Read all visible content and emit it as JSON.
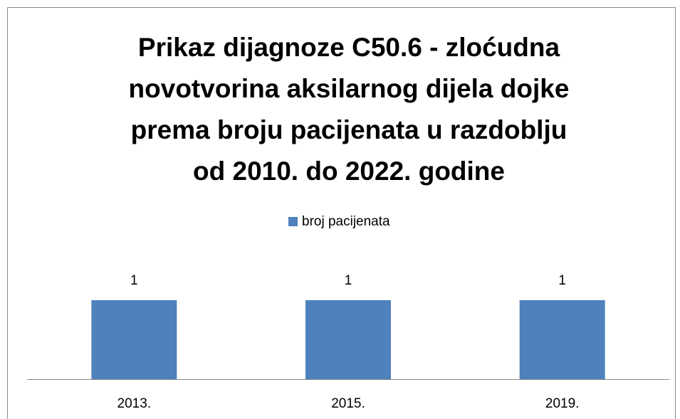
{
  "chart_data": {
    "type": "bar",
    "title": "Prikaz dijagnoze C50.6 - zloćudna\nnovotvorina aksilarnog dijela dojke\nprema broju pacijenata u razdoblju\nod 2010. do 2022. godine",
    "categories": [
      "2013.",
      "2015.",
      "2019."
    ],
    "series": [
      {
        "name": "broj pacijenata",
        "color": "#4f81bd",
        "values": [
          1,
          1,
          1
        ]
      }
    ]
  }
}
